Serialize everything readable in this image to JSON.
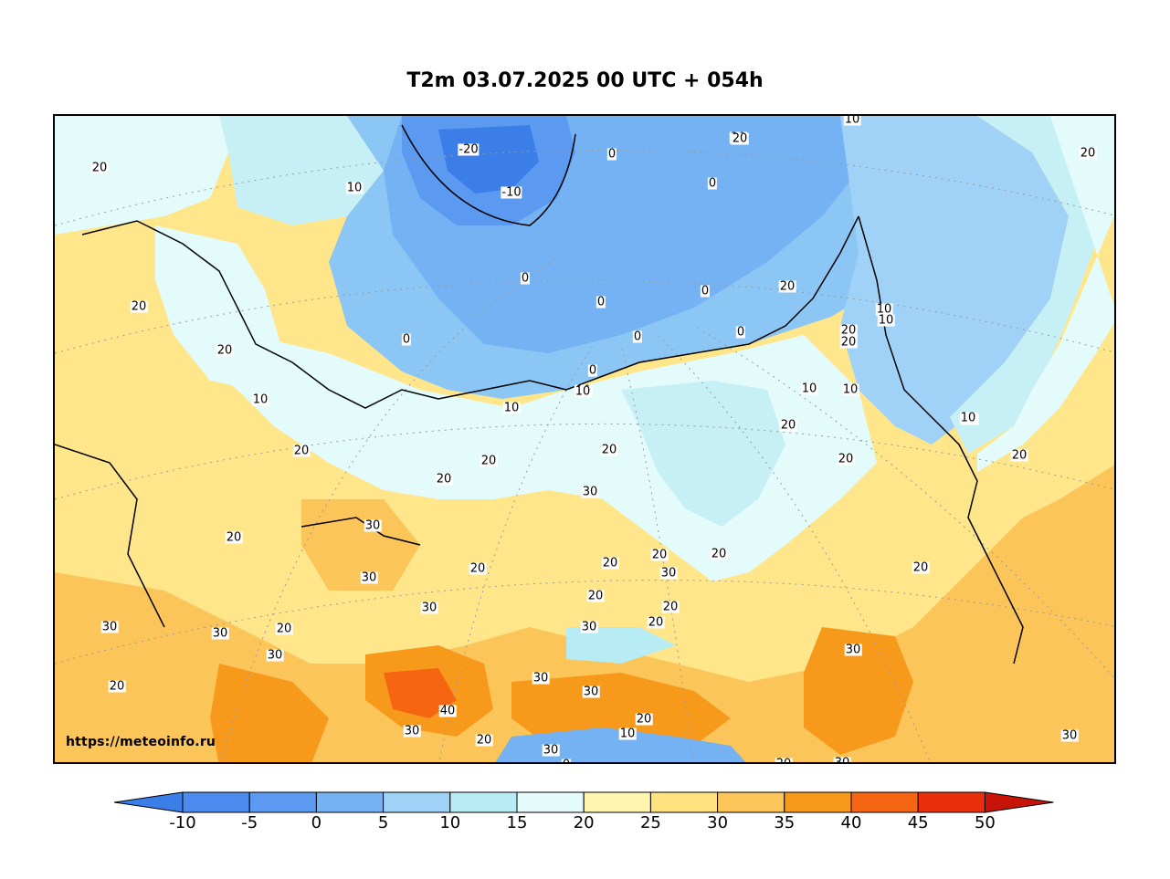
{
  "title": "T2m 03.07.2025 00 UTC + 054h",
  "watermark": "https://meteoinfo.ru",
  "colorbar": {
    "ticks": [
      "-10",
      "-5",
      "0",
      "5",
      "10",
      "15",
      "20",
      "25",
      "30",
      "35",
      "40",
      "45",
      "50"
    ],
    "colors": [
      "#3c7ee8",
      "#4d8cee",
      "#5b9af0",
      "#74b2f4",
      "#9fd2f6",
      "#b8ecf4",
      "#e4fbfb",
      "#fff5b0",
      "#ffe380",
      "#fcc55a",
      "#f79a1c",
      "#f66512",
      "#e8300c",
      "#c81408"
    ]
  },
  "contour_labels": [
    {
      "text": "20"
    },
    {
      "text": "-20"
    },
    {
      "text": "-10"
    },
    {
      "text": "0"
    },
    {
      "text": "0"
    },
    {
      "text": "0"
    },
    {
      "text": "0"
    },
    {
      "text": "0"
    },
    {
      "text": "10"
    },
    {
      "text": "20"
    },
    {
      "text": "10"
    },
    {
      "text": "20"
    },
    {
      "text": "20"
    },
    {
      "text": "20"
    },
    {
      "text": "10"
    },
    {
      "text": "0"
    },
    {
      "text": "0"
    },
    {
      "text": "0"
    },
    {
      "text": "0"
    },
    {
      "text": "10"
    },
    {
      "text": "10"
    },
    {
      "text": "10"
    },
    {
      "text": "20"
    },
    {
      "text": "20"
    },
    {
      "text": "20"
    },
    {
      "text": "20"
    },
    {
      "text": "20"
    },
    {
      "text": "20"
    },
    {
      "text": "10"
    },
    {
      "text": "10"
    },
    {
      "text": "10"
    },
    {
      "text": "20"
    },
    {
      "text": "20"
    },
    {
      "text": "20"
    },
    {
      "text": "20"
    },
    {
      "text": "30"
    },
    {
      "text": "30"
    },
    {
      "text": "30"
    },
    {
      "text": "20"
    },
    {
      "text": "30"
    },
    {
      "text": "30"
    },
    {
      "text": "20"
    },
    {
      "text": "30"
    },
    {
      "text": "30"
    },
    {
      "text": "20"
    },
    {
      "text": "20"
    },
    {
      "text": "20"
    },
    {
      "text": "30"
    },
    {
      "text": "30"
    },
    {
      "text": "20"
    },
    {
      "text": "30"
    },
    {
      "text": "30"
    },
    {
      "text": "40"
    },
    {
      "text": "30"
    },
    {
      "text": "20"
    },
    {
      "text": "10"
    },
    {
      "text": "20"
    },
    {
      "text": "30"
    },
    {
      "text": "0"
    },
    {
      "text": "30"
    },
    {
      "text": "20"
    },
    {
      "text": "30"
    },
    {
      "text": "20"
    },
    {
      "text": "30"
    },
    {
      "text": "20"
    },
    {
      "text": "10"
    },
    {
      "text": "10"
    },
    {
      "text": "20"
    },
    {
      "text": "20"
    },
    {
      "text": "20"
    },
    {
      "text": "20"
    },
    {
      "text": "10"
    }
  ]
}
